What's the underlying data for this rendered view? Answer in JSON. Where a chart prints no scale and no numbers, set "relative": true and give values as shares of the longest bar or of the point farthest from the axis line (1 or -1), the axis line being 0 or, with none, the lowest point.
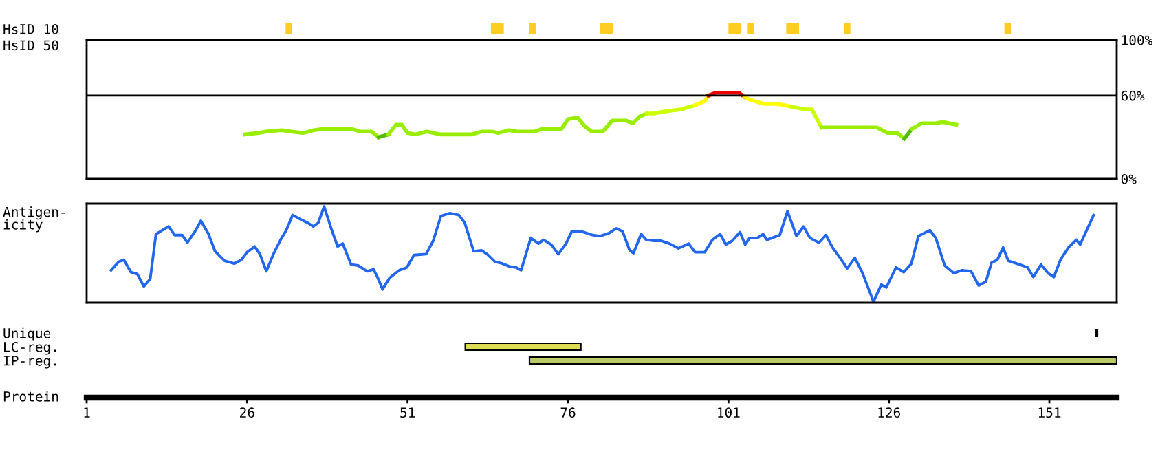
{
  "chart_data": [
    {
      "type": "bar",
      "orientation": "horizontal",
      "categories": [
        "HsID 10"
      ],
      "xlim": [
        1,
        161.5
      ],
      "tick_labels": "y",
      "series": [
        {
          "color": "#ffcc22",
          "base": [
            32
          ],
          "values": [
            1
          ]
        },
        {
          "color": "#ffcc22",
          "base": [
            64
          ],
          "values": [
            2
          ]
        },
        {
          "color": "#ffcc22",
          "base": [
            70
          ],
          "values": [
            1
          ]
        },
        {
          "color": "#ffcc22",
          "base": [
            81
          ],
          "values": [
            2
          ]
        },
        {
          "color": "#ffcc22",
          "base": [
            101
          ],
          "values": [
            2
          ]
        },
        {
          "color": "#ffcc22",
          "base": [
            104
          ],
          "values": [
            1
          ]
        },
        {
          "color": "#ffcc22",
          "base": [
            110
          ],
          "values": [
            2
          ]
        },
        {
          "color": "#ffcc22",
          "base": [
            119
          ],
          "values": [
            1
          ]
        },
        {
          "color": "#ffcc22",
          "base": [
            144
          ],
          "values": [
            1
          ]
        }
      ]
    },
    {
      "type": "line",
      "ylabel": "HsID 50",
      "xlim": [
        1,
        161.5
      ],
      "ylim": [
        0,
        100
      ],
      "tick_labels": "y",
      "grid": false,
      "yticks": [
        {
          "value": 0,
          "label": "0%"
        },
        {
          "value": 60,
          "label": "60%"
        },
        {
          "value": 100,
          "label": "100%"
        }
      ],
      "ref_lines": [
        {
          "axis": "y",
          "value": 60,
          "color": "#000000"
        }
      ],
      "series": [
        {
          "color": "#99ee00",
          "x": [
            25.7,
            27.8,
            28.9,
            31.4,
            32.9,
            34.7,
            36.4,
            37.9,
            42.2,
            43.7,
            45.4,
            46.5
          ],
          "values": [
            32,
            33,
            34,
            35,
            34,
            33,
            35,
            36,
            36,
            34,
            34,
            30
          ]
        },
        {
          "color": "#55bb00",
          "x": [
            46.5,
            48.0
          ],
          "values": [
            30,
            32
          ]
        },
        {
          "color": "#99ee00",
          "x": [
            48.0,
            49.2,
            50.1,
            51.0,
            52.2,
            54.0,
            56.1,
            61.0,
            62.5,
            64.3,
            65.1,
            66.8,
            68.1,
            70.7,
            72.0,
            75.0,
            76.0,
            77.5,
            78.6,
            79.7,
            81.4,
            82.9,
            85.0,
            86.1,
            87.2,
            88.3
          ],
          "values": [
            32,
            39,
            39,
            33,
            32,
            34,
            32,
            32,
            34,
            34,
            33,
            35,
            34,
            34,
            36,
            36,
            43,
            44,
            38,
            34,
            34,
            42,
            42,
            40,
            45,
            47
          ]
        },
        {
          "color": "#ccff00",
          "x": [
            88.3,
            89.3,
            90.4,
            91.9,
            93.6,
            95.8
          ],
          "values": [
            47,
            47,
            48,
            49,
            50,
            53
          ]
        },
        {
          "color": "#ffff00",
          "x": [
            95.8,
            97.3,
            97.9
          ],
          "values": [
            53,
            56,
            60
          ]
        },
        {
          "color": "#ee0000",
          "x": [
            97.9,
            99.0,
            102.6,
            103.5
          ],
          "values": [
            60,
            62,
            62,
            59
          ]
        },
        {
          "color": "#ffff00",
          "x": [
            103.5,
            104.3,
            106.5,
            108.6,
            110.8
          ],
          "values": [
            59,
            57,
            54,
            54,
            52
          ]
        },
        {
          "color": "#ccff00",
          "x": [
            110.8,
            112.9,
            114.0,
            115.5
          ],
          "values": [
            52,
            50,
            50,
            37
          ]
        },
        {
          "color": "#99ee00",
          "x": [
            115.5,
            124.1,
            125.8,
            127.3,
            128.4
          ],
          "values": [
            37,
            37,
            33,
            33,
            29
          ]
        },
        {
          "color": "#55bb00",
          "x": [
            128.4,
            129.6
          ],
          "values": [
            29,
            36
          ]
        },
        {
          "color": "#99ee00",
          "x": [
            129.6,
            131.1,
            133.3,
            134.4,
            135.4,
            136.5
          ],
          "values": [
            36,
            40,
            40,
            41,
            40,
            39
          ]
        }
      ]
    },
    {
      "type": "line",
      "relative": true,
      "ylabel": "Antigen-\nicity",
      "xlim": [
        1,
        161.5
      ],
      "tick_labels": false,
      "series": [
        {
          "color": "#2266ee",
          "x": [
            4.8,
            6.0,
            6.8,
            7.9,
            8.9,
            9.9,
            10.9,
            11.8,
            13.0,
            13.8,
            14.7,
            15.9,
            16.7,
            17.9,
            18.8,
            20.0,
            21.0,
            22.5,
            24.0,
            25.1,
            26.0,
            27.2,
            28.0,
            29.0,
            30.1,
            31.3,
            32.1,
            33.1,
            34.2,
            35.4,
            36.3,
            37.1,
            38.0,
            39.1,
            40.1,
            40.9,
            42.2,
            43.3,
            44.7,
            45.7,
            46.3,
            47.1,
            48.2,
            49.7,
            50.9,
            52.0,
            53.9,
            55.0,
            56.2,
            57.6,
            59.0,
            59.9,
            61.3,
            62.5,
            63.4,
            64.6,
            65.8,
            66.9,
            67.9,
            68.7,
            70.2,
            71.4,
            72.2,
            73.4,
            74.5,
            75.7,
            76.6,
            78.0,
            79.8,
            81.0,
            82.4,
            83.5,
            84.5,
            85.6,
            86.2,
            87.4,
            88.2,
            89.4,
            90.5,
            91.8,
            93.2,
            94.8,
            95.8,
            97.3,
            98.5,
            99.7,
            100.6,
            101.6,
            102.8,
            103.6,
            104.3,
            105.5,
            106.4,
            107.0,
            107.8,
            109.0,
            110.2,
            111.6,
            112.7,
            113.7,
            115.1,
            116.2,
            117.2,
            118.4,
            119.5,
            120.7,
            121.9,
            123.6,
            124.8,
            125.6,
            127.1,
            128.3,
            129.5,
            130.6,
            132.4,
            133.3,
            134.7,
            136.1,
            137.4,
            138.8,
            140.0,
            141.1,
            142.0,
            142.9,
            143.8,
            144.6,
            146.4,
            147.6,
            148.5,
            149.7,
            150.8,
            151.7,
            152.8,
            154.0,
            155.2,
            155.8,
            157.9
          ],
          "values": [
            0.33,
            0.42,
            0.44,
            0.31,
            0.29,
            0.16,
            0.24,
            0.71,
            0.76,
            0.79,
            0.7,
            0.7,
            0.62,
            0.74,
            0.85,
            0.71,
            0.53,
            0.43,
            0.4,
            0.44,
            0.52,
            0.58,
            0.5,
            0.32,
            0.5,
            0.66,
            0.75,
            0.91,
            0.87,
            0.83,
            0.79,
            0.83,
            1.0,
            0.77,
            0.58,
            0.61,
            0.39,
            0.38,
            0.32,
            0.34,
            0.26,
            0.13,
            0.25,
            0.33,
            0.36,
            0.49,
            0.5,
            0.64,
            0.9,
            0.93,
            0.91,
            0.83,
            0.53,
            0.54,
            0.5,
            0.42,
            0.4,
            0.37,
            0.36,
            0.33,
            0.67,
            0.61,
            0.65,
            0.6,
            0.5,
            0.61,
            0.74,
            0.74,
            0.7,
            0.69,
            0.72,
            0.77,
            0.74,
            0.54,
            0.51,
            0.71,
            0.65,
            0.64,
            0.64,
            0.61,
            0.56,
            0.61,
            0.52,
            0.52,
            0.65,
            0.71,
            0.6,
            0.64,
            0.73,
            0.6,
            0.67,
            0.67,
            0.71,
            0.65,
            0.67,
            0.7,
            0.95,
            0.69,
            0.79,
            0.67,
            0.62,
            0.7,
            0.57,
            0.46,
            0.35,
            0.46,
            0.3,
            0.0,
            0.18,
            0.15,
            0.36,
            0.31,
            0.4,
            0.69,
            0.75,
            0.67,
            0.38,
            0.3,
            0.33,
            0.32,
            0.17,
            0.21,
            0.41,
            0.44,
            0.57,
            0.43,
            0.39,
            0.36,
            0.26,
            0.39,
            0.3,
            0.26,
            0.45,
            0.57,
            0.65,
            0.6,
            0.91
          ]
        }
      ]
    },
    {
      "type": "bar",
      "orientation": "horizontal",
      "categories": [
        "Unique",
        "LC-reg.",
        "IP-reg."
      ],
      "xlabel": "Protein",
      "xlim": [
        1,
        161.5
      ],
      "xticks": [
        1,
        26,
        51,
        76,
        101,
        126,
        151
      ],
      "series": [
        {
          "colors": [
            "#000000",
            "#dddd55",
            "#bbcc66"
          ],
          "base": [
            158.2,
            60,
            70
          ],
          "values": [
            0.3,
            18,
            91.5
          ]
        }
      ]
    }
  ]
}
